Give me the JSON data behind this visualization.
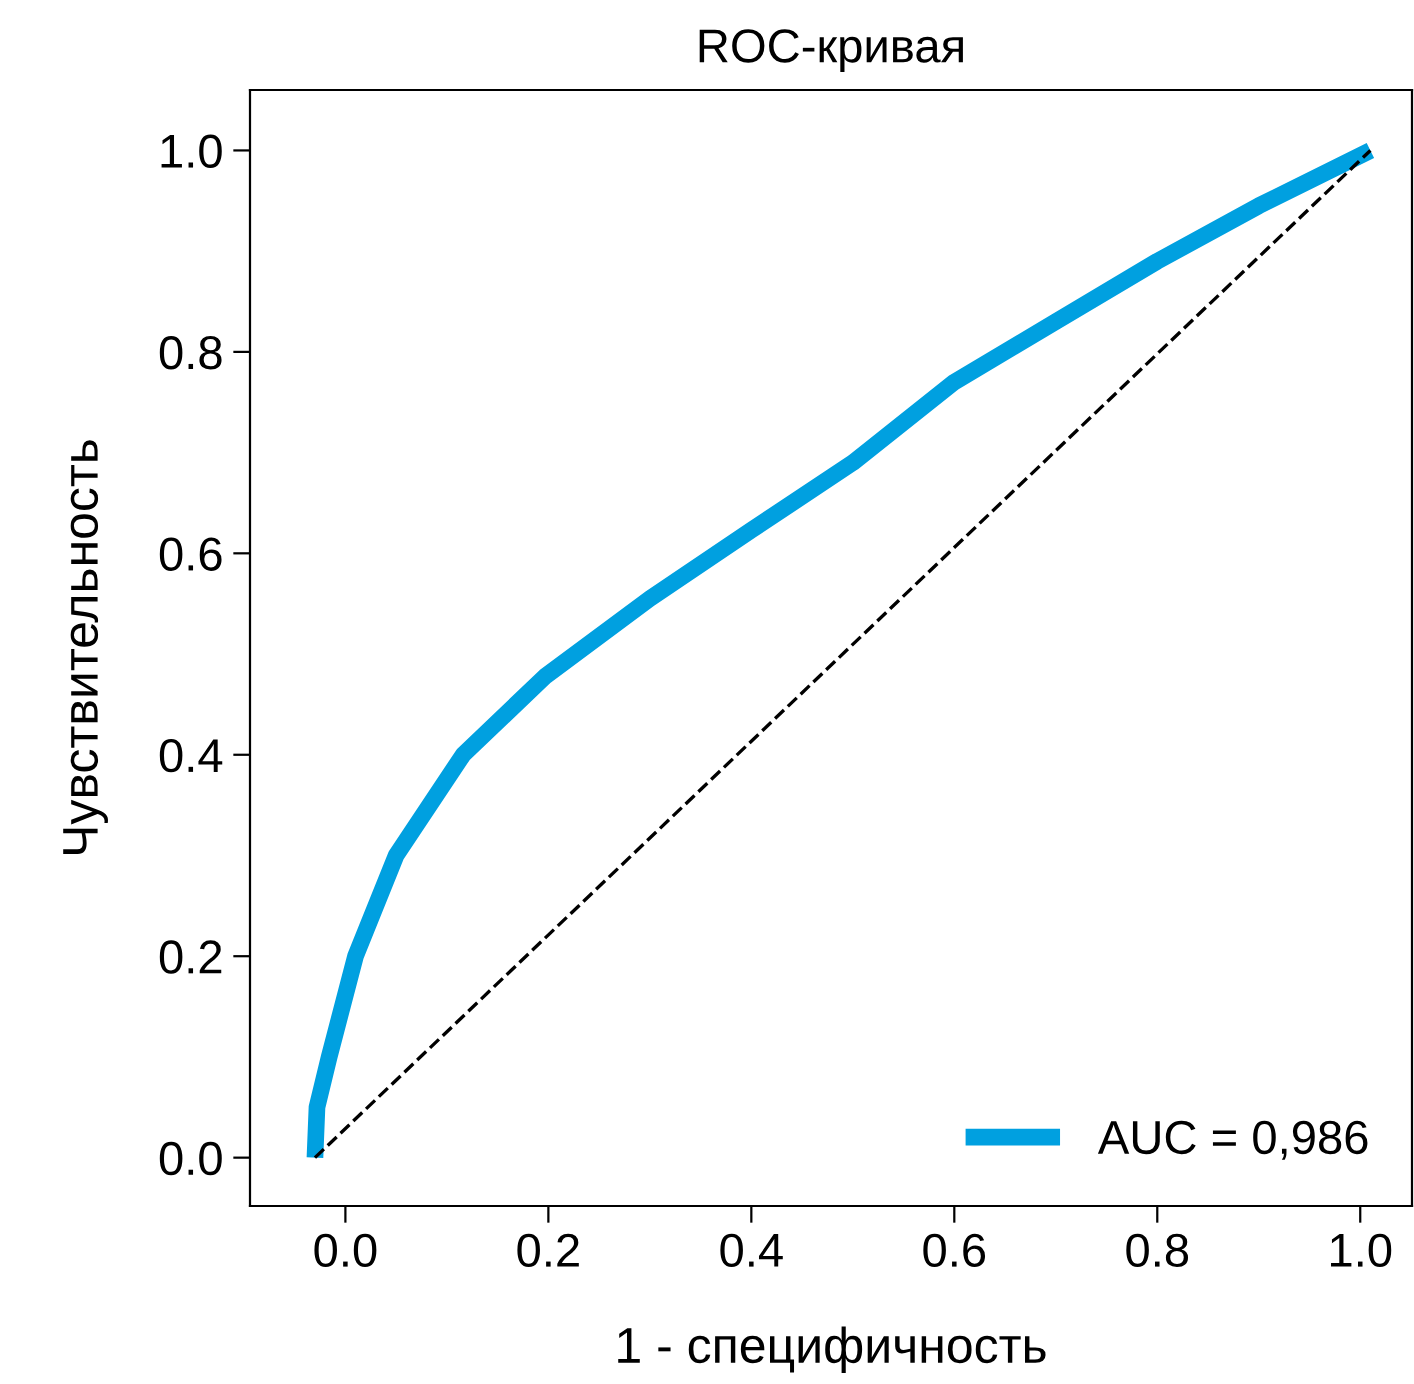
{
  "chart_data": {
    "type": "line",
    "title": "ROC-кривая",
    "xlabel": "1 - специфичность",
    "ylabel": "Чувствительность",
    "xlim": [
      -0.094,
      1.051
    ],
    "ylim": [
      -0.048,
      1.06
    ],
    "xticks": [
      {
        "value": 0,
        "label": "0.0"
      },
      0.2,
      0.4,
      0.6,
      0.8,
      {
        "value": 1,
        "label": "1.0"
      }
    ],
    "yticks": [
      {
        "value": 0,
        "label": "0.0"
      },
      0.2,
      0.4,
      0.6,
      0.8,
      {
        "value": 1,
        "label": "1.0"
      }
    ],
    "grid": false,
    "legend": "bottom right",
    "marker": "none",
    "series": [
      {
        "name": "AUC = 0,986",
        "color": "#00a0e0",
        "line_style": "solid",
        "x": [
          -0.03,
          -0.028,
          -0.016,
          0.01,
          0.05,
          0.116,
          0.197,
          0.3,
          0.4,
          0.5,
          0.6,
          0.7,
          0.8,
          0.9,
          1.01
        ],
        "values": [
          0.0,
          0.05,
          0.1,
          0.2,
          0.3,
          0.4,
          0.478,
          0.555,
          0.623,
          0.69,
          0.77,
          0.83,
          0.89,
          0.945,
          1.0
        ]
      },
      {
        "color": "#000000",
        "line_style": "dashed",
        "x": [
          -0.03,
          1.01
        ],
        "values": [
          0.0,
          1.0
        ]
      }
    ]
  }
}
